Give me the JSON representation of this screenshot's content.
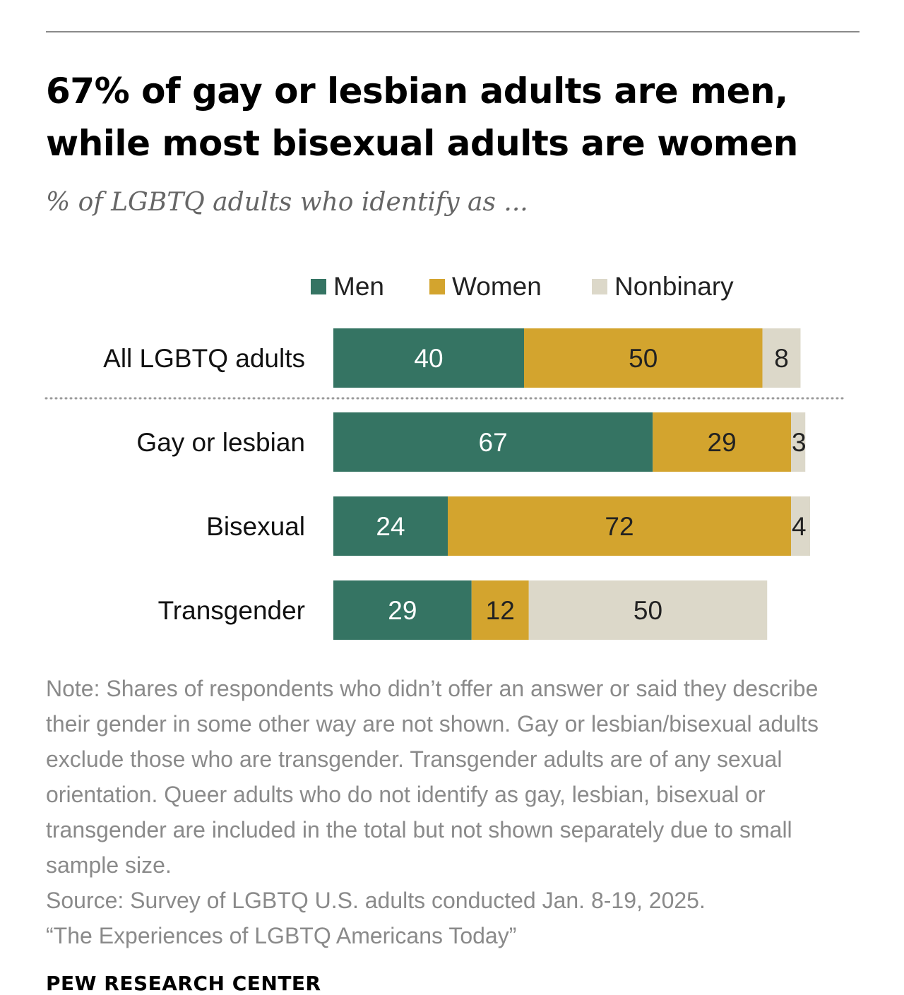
{
  "title": "67% of gay or lesbian adults are men, while most bisexual adults are women",
  "subtitle": "% of LGBTQ adults who identify as ...",
  "legend": [
    {
      "label": "Men",
      "color": "#357463"
    },
    {
      "label": "Women",
      "color": "#D3A42E"
    },
    {
      "label": "Nonbinary",
      "color": "#DCD8C9"
    }
  ],
  "chart_data": {
    "type": "bar",
    "orientation": "horizontal",
    "stacked": true,
    "categories": [
      "All LGBTQ adults",
      "Gay or lesbian",
      "Bisexual",
      "Transgender"
    ],
    "series": [
      {
        "name": "Men",
        "values": [
          40,
          67,
          24,
          29
        ],
        "color": "#357463"
      },
      {
        "name": "Women",
        "values": [
          50,
          29,
          72,
          12
        ],
        "color": "#D3A42E"
      },
      {
        "name": "Nonbinary",
        "values": [
          8,
          3,
          4,
          50
        ],
        "color": "#DCD8C9"
      }
    ],
    "xlim": [
      0,
      100
    ],
    "separator_after_category": "All LGBTQ adults",
    "grid": false,
    "legend_position": "top"
  },
  "note": [
    "Note: Shares of respondents who didn’t offer an answer or said they describe their gender in some other way are not shown. Gay or lesbian/bisexual adults exclude those who are transgender. Transgender adults are of any sexual orientation. Queer adults who do not identify as gay, lesbian, bisexual or transgender are included in the total but not shown separately due to small sample size.",
    "Source: Survey of LGBTQ U.S. adults conducted Jan. 8-19, 2025.",
    "“The Experiences of LGBTQ Americans Today”"
  ],
  "footer": "PEW RESEARCH CENTER"
}
